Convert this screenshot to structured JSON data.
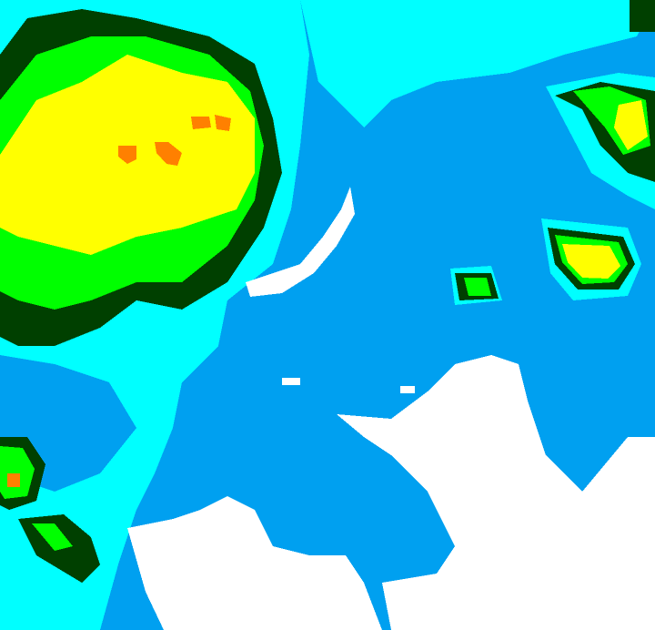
{
  "map": {
    "type": "precipitation-intensity-raster",
    "colors": {
      "background": "#00a0f0",
      "none": "#ffffff",
      "very_light": "#00ffff",
      "light": "#00a0f0",
      "moderate": "#004000",
      "heavy": "#00ff00",
      "very_heavy": "#ffff00",
      "extreme": "#ff8000"
    }
  }
}
